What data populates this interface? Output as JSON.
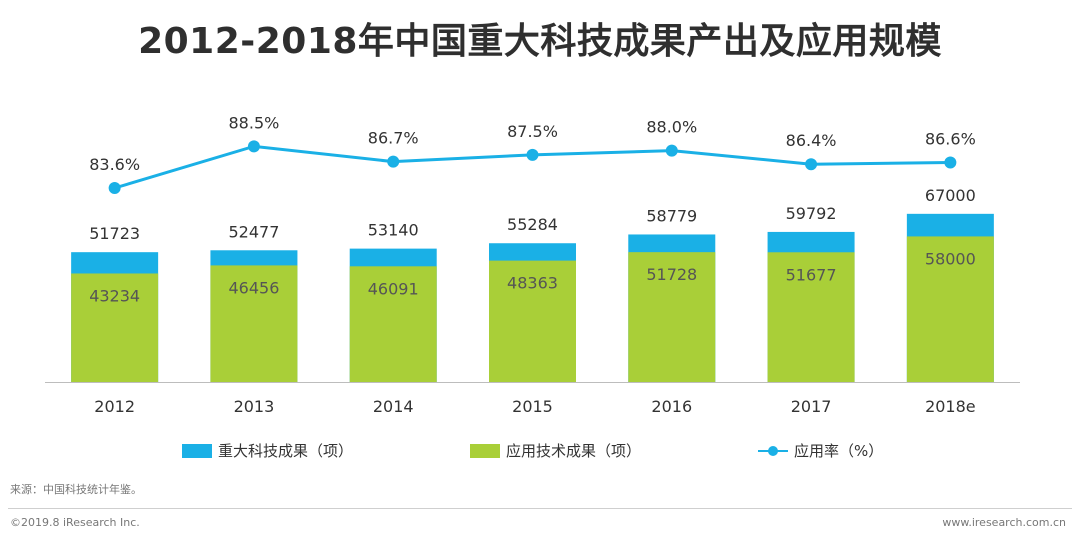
{
  "title": "2012-2018年中国重大科技成果产出及应用规模",
  "colors": {
    "major_achievements": "#1ab0e6",
    "applied_achievements": "#a9cf38",
    "rate_line": "#1ab0e6",
    "axis": "#bdbdbd",
    "text": "#333333"
  },
  "chart_data": {
    "type": "bar",
    "categories": [
      "2012",
      "2013",
      "2014",
      "2015",
      "2016",
      "2017",
      "2018e"
    ],
    "series": [
      {
        "name": "重大科技成果（项）",
        "type": "bar",
        "values": [
          51723,
          52477,
          53140,
          55284,
          58779,
          59792,
          67000
        ],
        "labels": [
          "51723",
          "52477",
          "53140",
          "55284",
          "58779",
          "59792",
          "67000"
        ]
      },
      {
        "name": "应用技术成果（项）",
        "type": "bar",
        "values": [
          43234,
          46456,
          46091,
          48363,
          51728,
          51677,
          58000
        ],
        "labels": [
          "43234",
          "46456",
          "46091",
          "48363",
          "51728",
          "51677",
          "58000"
        ]
      },
      {
        "name": "应用率（%）",
        "type": "line",
        "values": [
          83.6,
          88.5,
          86.7,
          87.5,
          88.0,
          86.4,
          86.6
        ],
        "labels": [
          "83.6%",
          "88.5%",
          "86.7%",
          "87.5%",
          "88.0%",
          "86.4%",
          "86.6%"
        ]
      }
    ],
    "legend_position": "bottom",
    "grid": false
  },
  "legend": {
    "major": "重大科技成果（项）",
    "applied": "应用技术成果（项）",
    "rate": "应用率（%）"
  },
  "source": "来源：中国科技统计年鉴。",
  "footer": {
    "copyright": "©2019.8 iResearch Inc.",
    "website": "www.iresearch.com.cn"
  }
}
